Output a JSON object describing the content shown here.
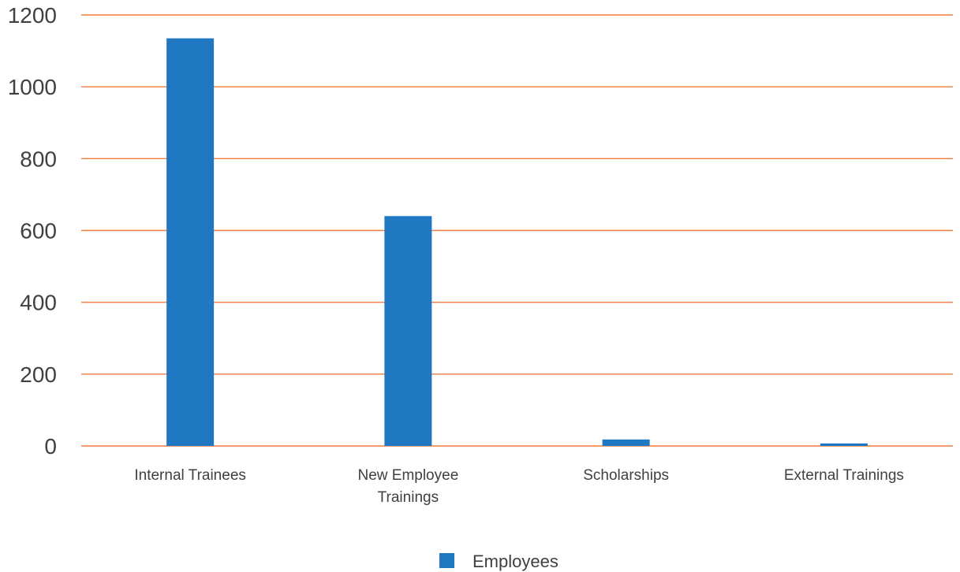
{
  "chart_data": {
    "type": "bar",
    "categories": [
      [
        "Internal Trainees"
      ],
      [
        "New Employee",
        "Trainings"
      ],
      [
        "Scholarships"
      ],
      [
        "External Trainings"
      ]
    ],
    "series": [
      {
        "name": "Employees",
        "values": [
          1135,
          640,
          18,
          7
        ]
      }
    ],
    "title": "",
    "xlabel": "",
    "ylabel": "",
    "ylim": [
      0,
      1200
    ],
    "yticks": [
      0,
      200,
      400,
      600,
      800,
      1000,
      1200
    ],
    "grid": true,
    "legend": "bottom-center",
    "colors": {
      "bar": "#1f78c1",
      "grid": "#f07b3f",
      "text": "#404040"
    }
  }
}
